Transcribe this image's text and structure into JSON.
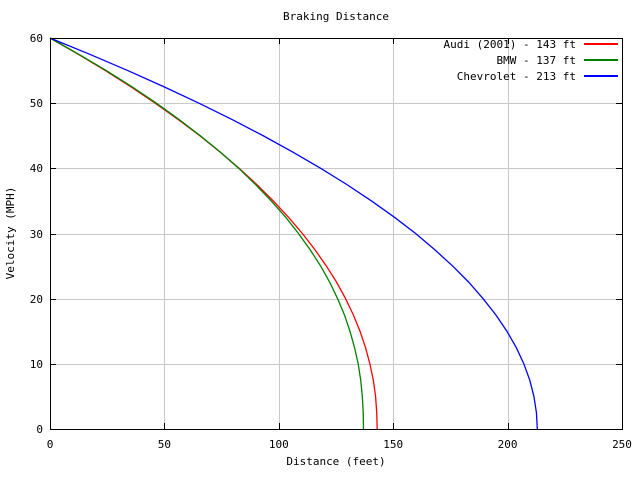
{
  "chart_data": {
    "type": "line",
    "title": "Braking Distance",
    "xlabel": "Distance (feet)",
    "ylabel": "Velocity (MPH)",
    "xlim": [
      0,
      250
    ],
    "ylim": [
      0,
      60
    ],
    "xticks": [
      0,
      50,
      100,
      150,
      200,
      250
    ],
    "yticks": [
      0,
      10,
      20,
      30,
      40,
      50,
      60
    ],
    "grid": true,
    "grid_color": "#c8c8c8",
    "frame_color": "#000000",
    "background_color": "#ffffff",
    "legend_position": "top-right-inside",
    "series": [
      {
        "name": "Audi (2001)",
        "label": "Audi (2001) - 143 ft",
        "color": "#ff0000",
        "braking_distance_ft": 143,
        "start_velocity_mph": 60,
        "points": [
          [
            0,
            60
          ],
          [
            12.4,
            57.5
          ],
          [
            24.2,
            55
          ],
          [
            35.4,
            52.5
          ],
          [
            46.0,
            50
          ],
          [
            56.0,
            47.5
          ],
          [
            65.5,
            45
          ],
          [
            74.3,
            42.5
          ],
          [
            82.7,
            40
          ],
          [
            90.4,
            37.5
          ],
          [
            97.6,
            35
          ],
          [
            104.2,
            32.5
          ],
          [
            110.3,
            30
          ],
          [
            115.8,
            27.5
          ],
          [
            120.8,
            25
          ],
          [
            125.3,
            22.5
          ],
          [
            129.2,
            20
          ],
          [
            132.6,
            17.5
          ],
          [
            135.5,
            15
          ],
          [
            137.9,
            12.5
          ],
          [
            139.8,
            10
          ],
          [
            141.3,
            7.5
          ],
          [
            142.3,
            5
          ],
          [
            142.8,
            2.5
          ],
          [
            143,
            0
          ]
        ]
      },
      {
        "name": "BMW",
        "label": "BMW - 137 ft",
        "color": "#008000",
        "braking_distance_ft": 137,
        "start_velocity_mph": 60,
        "points": [
          [
            0,
            60
          ],
          [
            12.6,
            57.5
          ],
          [
            24.6,
            55
          ],
          [
            35.9,
            52.5
          ],
          [
            46.5,
            50
          ],
          [
            56.4,
            47.5
          ],
          [
            65.7,
            45
          ],
          [
            74.4,
            42.5
          ],
          [
            82.5,
            40
          ],
          [
            89.9,
            37.5
          ],
          [
            96.7,
            35
          ],
          [
            103.0,
            32.5
          ],
          [
            108.6,
            30
          ],
          [
            113.7,
            27.5
          ],
          [
            118.3,
            25
          ],
          [
            122.3,
            22.5
          ],
          [
            125.7,
            20
          ],
          [
            128.7,
            17.5
          ],
          [
            131.1,
            15
          ],
          [
            133.1,
            12.5
          ],
          [
            134.7,
            10
          ],
          [
            135.8,
            7.5
          ],
          [
            136.5,
            5
          ],
          [
            136.9,
            2.5
          ],
          [
            137,
            0
          ]
        ]
      },
      {
        "name": "Chevrolet",
        "label": "Chevrolet - 213 ft",
        "color": "#0000ff",
        "braking_distance_ft": 213,
        "start_velocity_mph": 60,
        "points": [
          [
            0,
            60
          ],
          [
            17.4,
            57.5
          ],
          [
            34.0,
            55
          ],
          [
            49.9,
            52.5
          ],
          [
            65.1,
            50
          ],
          [
            79.5,
            47.5
          ],
          [
            93.2,
            45
          ],
          [
            106.1,
            42.5
          ],
          [
            118.3,
            40
          ],
          [
            129.8,
            37.5
          ],
          [
            140.5,
            35
          ],
          [
            150.5,
            32.5
          ],
          [
            159.8,
            30
          ],
          [
            168.2,
            27.5
          ],
          [
            176.0,
            25
          ],
          [
            183.1,
            22.5
          ],
          [
            189.3,
            20
          ],
          [
            194.9,
            17.5
          ],
          [
            199.7,
            15
          ],
          [
            203.8,
            12.5
          ],
          [
            207.1,
            10
          ],
          [
            209.7,
            7.5
          ],
          [
            211.5,
            5
          ],
          [
            212.6,
            2.5
          ],
          [
            213,
            0
          ]
        ]
      }
    ]
  }
}
